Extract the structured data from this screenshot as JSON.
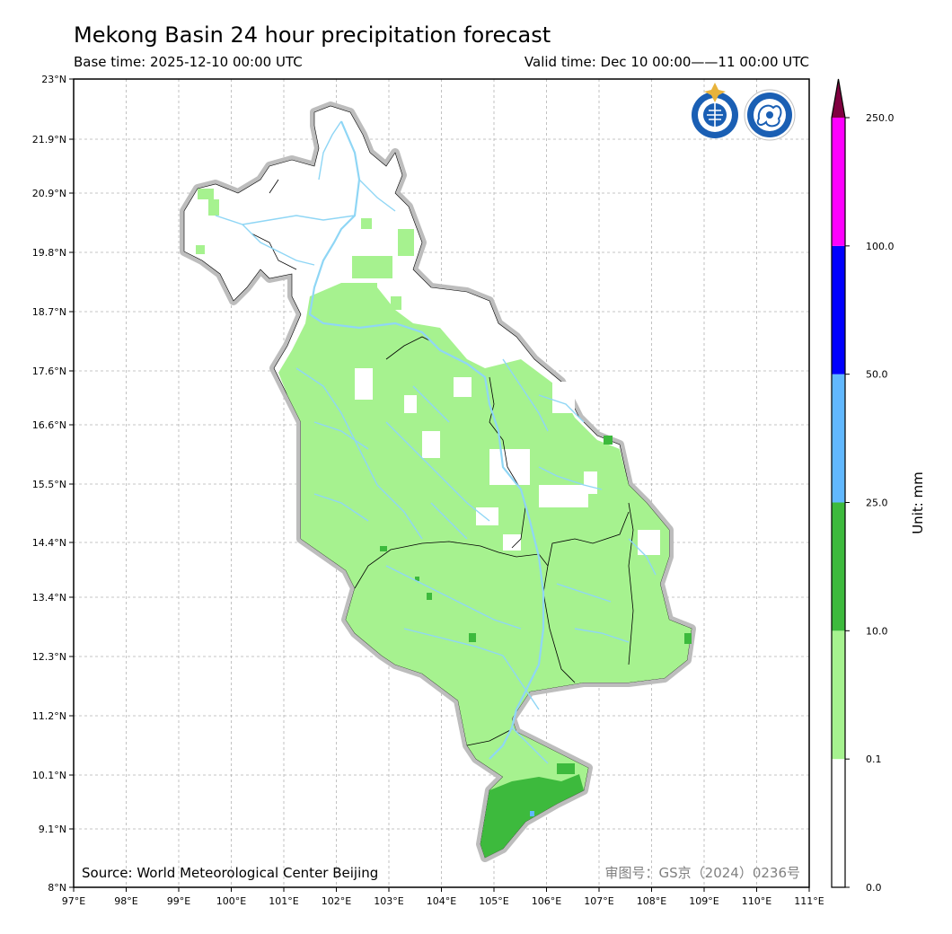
{
  "header": {
    "title": "Mekong Basin 24 hour precipitation forecast",
    "base_time": "Base time: 2025-12-10 00:00 UTC",
    "valid_time": "Valid time: Dec 10 00:00——11 00:00 UTC"
  },
  "map": {
    "lat_ticks": [
      "23°N",
      "21.9°N",
      "20.9°N",
      "19.8°N",
      "18.7°N",
      "17.6°N",
      "16.6°N",
      "15.5°N",
      "14.4°N",
      "13.4°N",
      "12.3°N",
      "11.2°N",
      "10.1°N",
      "9.1°N",
      "8°N"
    ],
    "lon_ticks": [
      "97°E",
      "98°E",
      "99°E",
      "100°E",
      "101°E",
      "102°E",
      "103°E",
      "104°E",
      "105°E",
      "106°E",
      "107°E",
      "108°E",
      "109°E",
      "110°E",
      "111°E"
    ],
    "source": "Source: World Meteorological Center Beijing",
    "approval_number": "审图号：GS京（2024）0236号",
    "logos": [
      "wmo-logo-icon",
      "cma-logo-icon"
    ],
    "colors": {
      "basin_fill": "#a6f28f",
      "heavy_fill": "#3dba3d",
      "river": "#8fd6f5",
      "basin_halo": "#bdbdbd",
      "grid": "#b3b3b3"
    }
  },
  "colorbar": {
    "unit_label": "Unit: mm",
    "levels": [
      "0.0",
      "0.1",
      "10.0",
      "25.0",
      "50.0",
      "100.0",
      "250.0"
    ],
    "colors": [
      "#ffffff",
      "#a6f28f",
      "#3dba3d",
      "#61b8ff",
      "#0000ff",
      "#ff00ff",
      "#800040"
    ]
  }
}
